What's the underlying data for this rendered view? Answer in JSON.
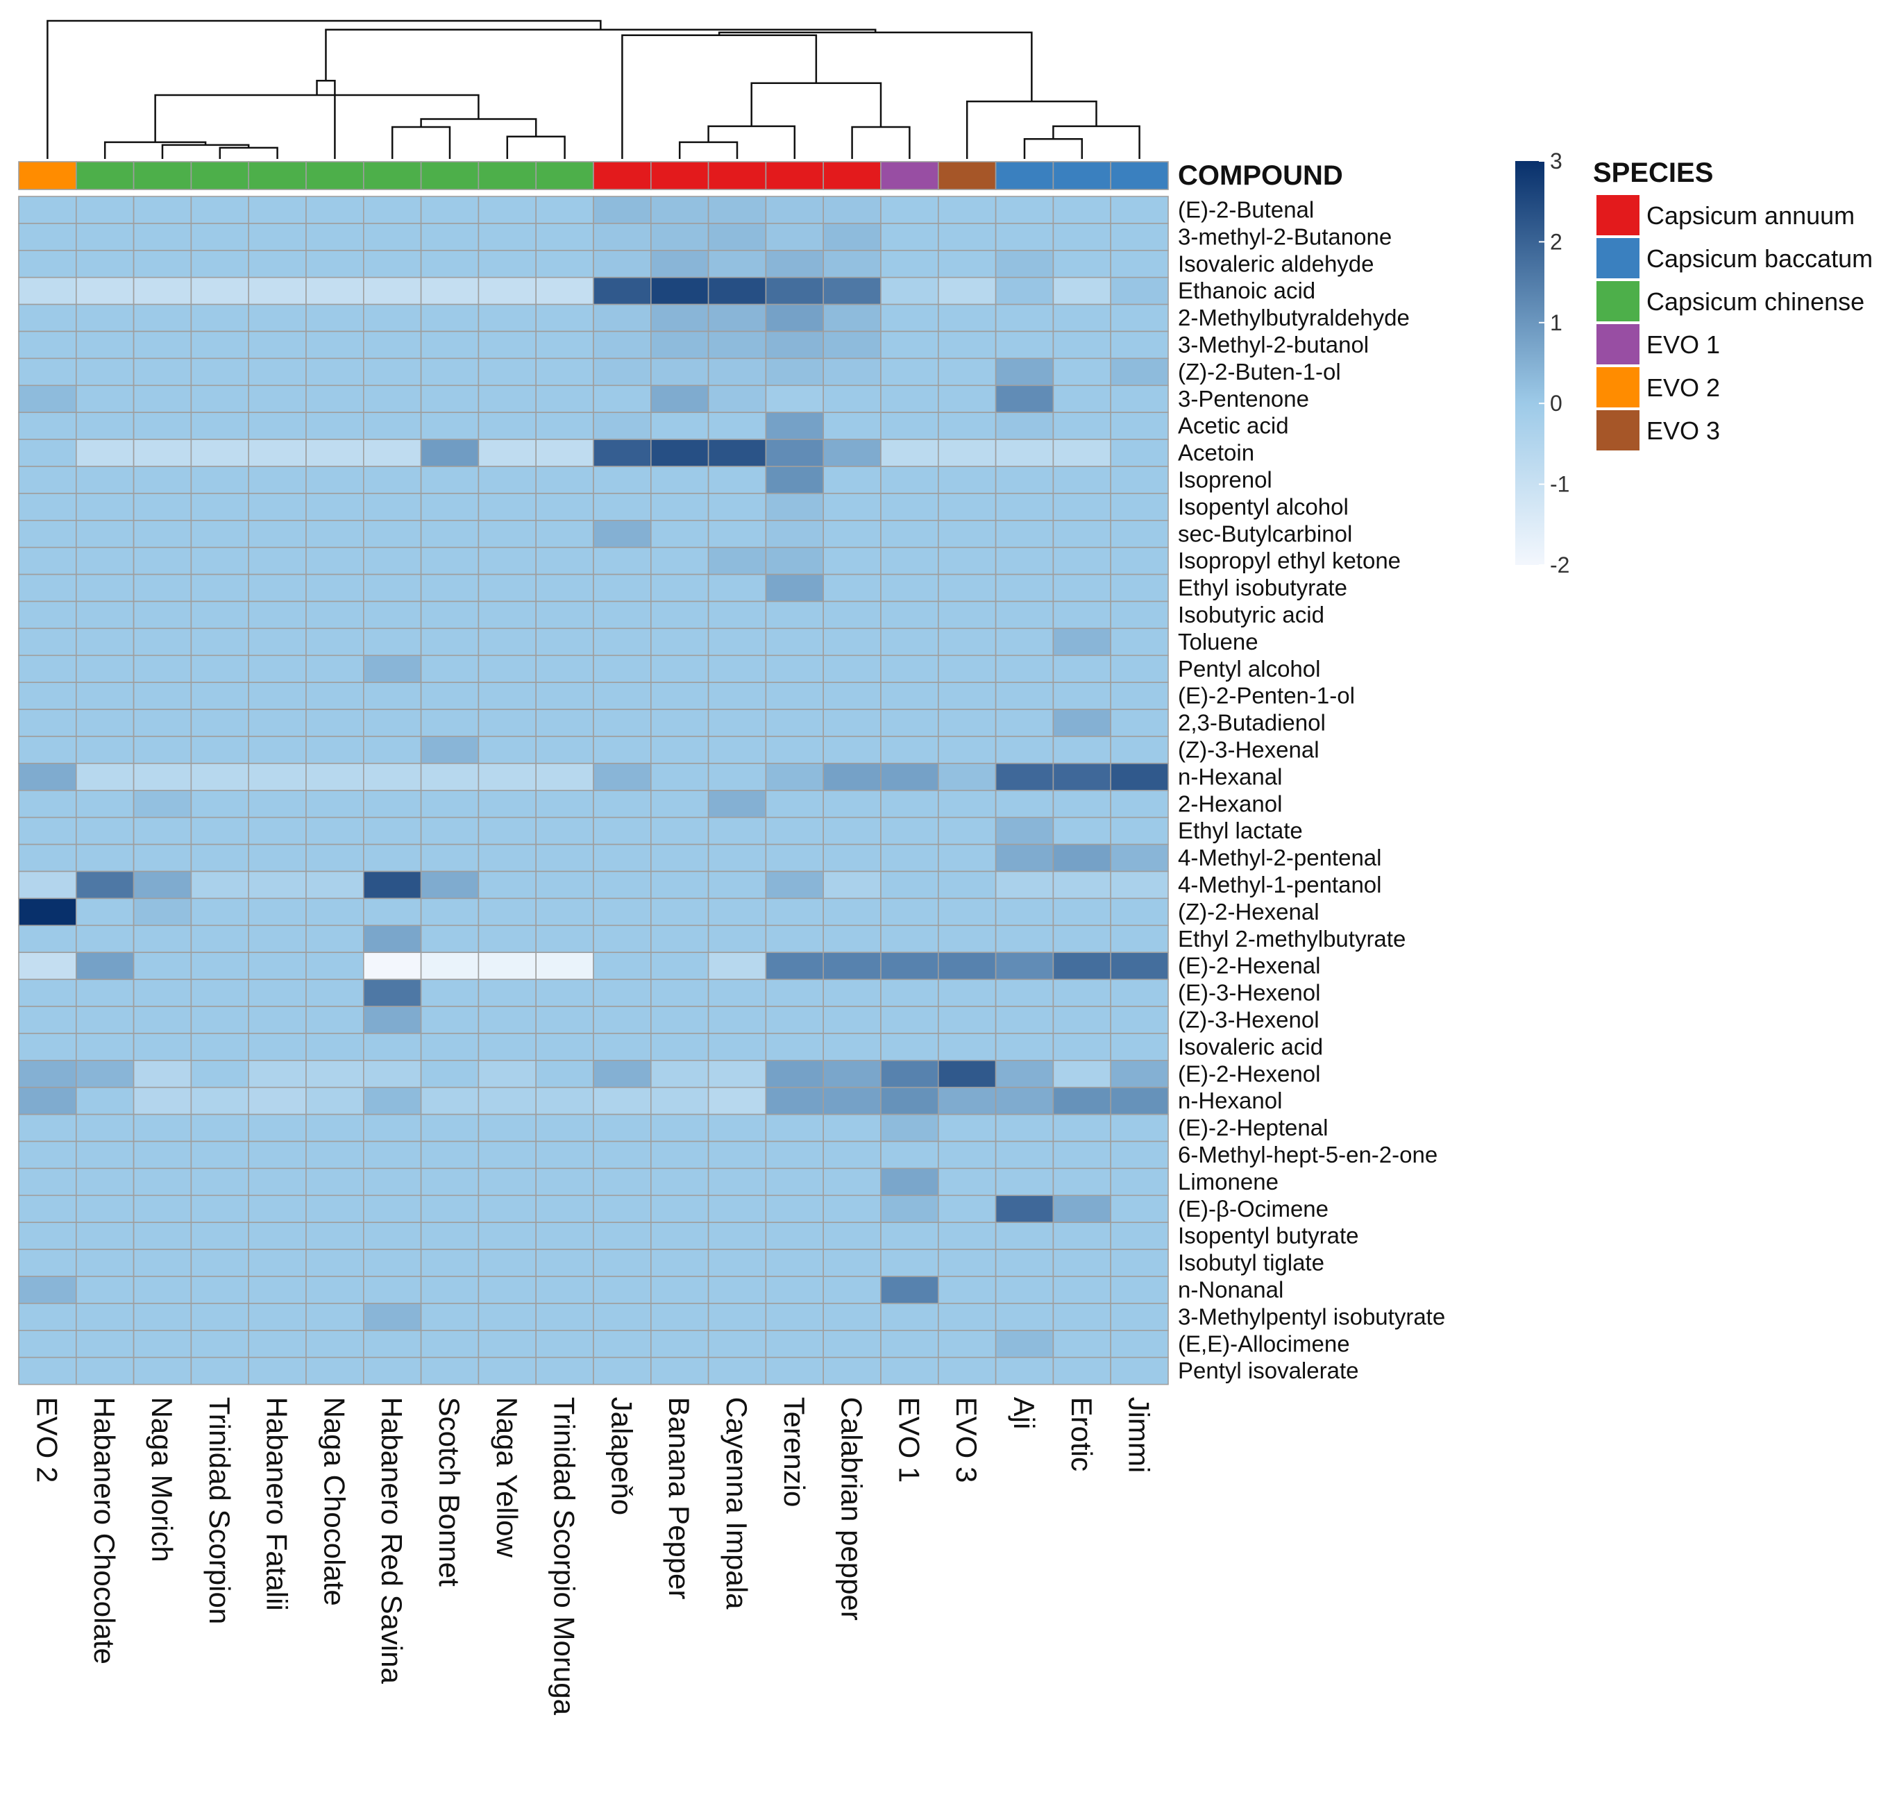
{
  "chart_data": {
    "type": "heatmap",
    "annotation_title": "COMPOUND",
    "columns": [
      "EVO 2",
      "Habanero Chocolate",
      "Naga Morich",
      "Trinidad Scorpion",
      "Habanero Fatalii",
      "Naga Chocolate",
      "Habanero Red Savina",
      "Scotch Bonnet",
      "Naga Yellow",
      "Trinidad Scorpio Moruga",
      "Jalapeňo",
      "Banana Pepper",
      "Cayenna Impala",
      "Terenzio",
      "Calabrian pepper",
      "EVO 1",
      "EVO 3",
      "Aji",
      "Erotic",
      "Jimmi"
    ],
    "column_species": [
      "EVO 2",
      "Capsicum chinense",
      "Capsicum chinense",
      "Capsicum chinense",
      "Capsicum chinense",
      "Capsicum chinense",
      "Capsicum chinense",
      "Capsicum chinense",
      "Capsicum chinense",
      "Capsicum chinense",
      "Capsicum annuum",
      "Capsicum annuum",
      "Capsicum annuum",
      "Capsicum annuum",
      "Capsicum annuum",
      "EVO 1",
      "EVO 3",
      "Capsicum baccatum",
      "Capsicum baccatum",
      "Capsicum baccatum"
    ],
    "rows": [
      "(E)-2-Butenal",
      "3-methyl-2-Butanone",
      "Isovaleric aldehyde",
      "Ethanoic acid",
      "2-Methylbutyraldehyde",
      "3-Methyl-2-butanol",
      "(Z)-2-Buten-1-ol",
      "3-Pentenone",
      "Acetic acid",
      "Acetoin",
      "Isoprenol",
      "Isopentyl alcohol",
      "sec-Butylcarbinol",
      "Isopropyl ethyl ketone",
      "Ethyl isobutyrate",
      "Isobutyric acid",
      "Toluene",
      "Pentyl alcohol",
      "(E)-2-Penten-1-ol",
      "2,3-Butadienol",
      "(Z)-3-Hexenal",
      "n-Hexanal",
      "2-Hexanol",
      "Ethyl lactate",
      "4-Methyl-2-pentenal",
      "4-Methyl-1-pentanol",
      "(Z)-2-Hexenal",
      "Ethyl 2-methylbutyrate",
      "(E)-2-Hexenal",
      "(E)-3-Hexenol",
      "(Z)-3-Hexenol",
      "Isovaleric acid",
      "(E)-2-Hexenol",
      "n-Hexanol",
      "(E)-2-Heptenal",
      "6-Methyl-hept-5-en-2-one",
      "Limonene",
      "(E)-β-Ocimene",
      "Isopentyl butyrate",
      "Isobutyl tiglate",
      "n-Nonanal",
      "3-Methylpentyl isobutyrate",
      "(E,E)-Allocimene",
      "Pentyl isovalerate"
    ],
    "values": [
      [
        0,
        0,
        0,
        0,
        0,
        0,
        0,
        0,
        0,
        0,
        0.3,
        0.2,
        0.2,
        0.1,
        0.1,
        0,
        0,
        0,
        0,
        0
      ],
      [
        0,
        0,
        0,
        0,
        0,
        0,
        0,
        0,
        0,
        0,
        0.1,
        0.2,
        0.3,
        0.1,
        0.3,
        0,
        0,
        0,
        0,
        0
      ],
      [
        0,
        0,
        0,
        0,
        0,
        0,
        0,
        0,
        0,
        0,
        0.1,
        0.4,
        0.2,
        0.4,
        0.2,
        0,
        0,
        0.2,
        0,
        0
      ],
      [
        -0.8,
        -0.9,
        -0.9,
        -0.9,
        -0.9,
        -0.9,
        -0.9,
        -0.9,
        -0.9,
        -0.9,
        2.2,
        2.6,
        2.4,
        1.8,
        1.6,
        -0.3,
        -0.6,
        0.1,
        -0.6,
        0.1
      ],
      [
        0,
        0,
        0,
        0,
        0,
        0,
        0,
        0,
        0,
        0,
        0.1,
        0.4,
        0.4,
        0.8,
        0.3,
        0,
        0,
        0,
        0,
        0
      ],
      [
        0,
        0,
        0,
        0,
        0,
        0,
        0,
        0,
        0,
        0,
        0.1,
        0.3,
        0.3,
        0.4,
        0.3,
        0,
        0,
        0,
        0,
        0
      ],
      [
        0,
        0,
        0,
        0,
        0,
        0,
        0,
        0,
        0,
        0,
        0.1,
        0.1,
        0.1,
        0.2,
        0.1,
        0,
        0,
        0.6,
        0,
        0.3
      ],
      [
        0.3,
        0,
        0,
        0,
        0,
        0,
        0,
        0,
        0,
        0,
        0,
        0.6,
        0.1,
        -0.1,
        0,
        0,
        0,
        1.2,
        0,
        0
      ],
      [
        0,
        0,
        0,
        0,
        0,
        0,
        0,
        0,
        0,
        0,
        0.1,
        0,
        0,
        0.8,
        0,
        0,
        0,
        0.1,
        0,
        0
      ],
      [
        0,
        -0.8,
        -0.8,
        -0.8,
        -0.8,
        -0.8,
        -0.8,
        0.9,
        -0.8,
        -0.8,
        2.1,
        2.4,
        2.3,
        1.2,
        0.6,
        -0.7,
        -0.7,
        -0.7,
        -0.7,
        0
      ],
      [
        0,
        0,
        0,
        0,
        0,
        0,
        0,
        0,
        0,
        0,
        0,
        0,
        0,
        1.1,
        0,
        0,
        0,
        0,
        0,
        0
      ],
      [
        0,
        0,
        0,
        0,
        0,
        0,
        0,
        0,
        0,
        0,
        0,
        0,
        0,
        0.2,
        0,
        0,
        0,
        0,
        0,
        0
      ],
      [
        0,
        0,
        0,
        0,
        0,
        0,
        0,
        0,
        0,
        0,
        0.5,
        0,
        0,
        0.1,
        0,
        0,
        0,
        0,
        0,
        0
      ],
      [
        0,
        0,
        0,
        0,
        0,
        0,
        0,
        0,
        0,
        0,
        0,
        0,
        0.3,
        0.3,
        0,
        0,
        0,
        0,
        0,
        0
      ],
      [
        0,
        0,
        0,
        0,
        0,
        0,
        0,
        0,
        0,
        0,
        0,
        0,
        0,
        0.7,
        0,
        0,
        0,
        0,
        0,
        0
      ],
      [
        0,
        0,
        0,
        0,
        0,
        0,
        0,
        0,
        0,
        0,
        0,
        0,
        0,
        0,
        0,
        0,
        0,
        0,
        0,
        0
      ],
      [
        0,
        0,
        0,
        0,
        0,
        0,
        0,
        0,
        0,
        0,
        0,
        0,
        0,
        0,
        0,
        0,
        0,
        0,
        0.4,
        0
      ],
      [
        0,
        0,
        0,
        0,
        0,
        0,
        0.4,
        0,
        0,
        0,
        0,
        0,
        0,
        0,
        0,
        0,
        0,
        0,
        0,
        0
      ],
      [
        0,
        0,
        0,
        0,
        0,
        0,
        0,
        0,
        0,
        0,
        0,
        0,
        0,
        0,
        0,
        0,
        0,
        0,
        0,
        0
      ],
      [
        0,
        0,
        0,
        0,
        0,
        0,
        0,
        0,
        0,
        0,
        0,
        0,
        0,
        0,
        0,
        0,
        0,
        0,
        0.5,
        0
      ],
      [
        0,
        0,
        0,
        0,
        0,
        0,
        0,
        0.4,
        0,
        0,
        0,
        0,
        0,
        0,
        0,
        0,
        0,
        0,
        0,
        0
      ],
      [
        0.6,
        -0.6,
        -0.6,
        -0.6,
        -0.6,
        -0.6,
        -0.6,
        -0.6,
        -0.6,
        -0.6,
        0.4,
        0,
        0,
        0.3,
        0.8,
        0.8,
        0.2,
        1.9,
        1.9,
        2.2
      ],
      [
        0,
        0,
        0.2,
        0,
        0,
        0,
        0,
        0,
        0,
        0,
        0,
        0,
        0.5,
        0,
        0,
        0,
        0,
        0,
        0,
        0
      ],
      [
        0,
        0,
        0,
        0,
        0,
        0,
        0,
        0,
        0,
        0,
        0,
        0,
        0,
        0,
        0,
        0,
        0,
        0.4,
        0,
        0
      ],
      [
        0,
        0,
        0,
        0,
        0,
        0,
        0,
        0,
        0,
        0,
        0,
        0,
        0,
        0,
        0,
        0,
        0,
        0.6,
        0.8,
        0.4
      ],
      [
        -0.5,
        1.6,
        0.6,
        -0.3,
        -0.3,
        -0.3,
        2.3,
        0.6,
        0,
        0,
        0,
        0,
        0,
        0.4,
        -0.3,
        0,
        0,
        -0.3,
        -0.3,
        -0.3
      ],
      [
        3,
        0,
        0.2,
        0,
        0,
        0,
        0,
        0,
        0,
        0,
        0,
        0,
        0,
        0,
        0,
        0,
        0,
        0,
        0,
        0
      ],
      [
        0,
        0,
        0,
        0,
        0,
        0,
        0.7,
        0,
        0,
        0,
        0,
        0,
        0,
        0,
        0,
        0,
        0,
        0,
        0,
        0
      ],
      [
        -0.9,
        0.8,
        0,
        0,
        0,
        0,
        -2,
        -1.8,
        -1.8,
        -1.8,
        0,
        0,
        -0.6,
        1.4,
        1.4,
        1.4,
        1.4,
        1.2,
        1.8,
        1.8
      ],
      [
        0,
        0,
        0,
        0,
        0,
        0,
        1.6,
        0,
        0,
        0,
        0,
        0,
        0,
        0,
        0,
        0,
        0,
        0,
        0,
        0
      ],
      [
        0,
        0,
        0,
        0,
        0,
        0,
        0.6,
        0,
        0,
        0,
        0,
        0,
        0,
        0,
        0,
        0,
        0,
        0,
        0,
        0
      ],
      [
        0,
        0,
        0,
        0,
        0,
        0,
        0,
        0,
        0,
        0,
        0,
        0,
        0,
        0,
        0,
        0,
        0,
        0,
        0,
        0
      ],
      [
        0.5,
        0.4,
        -0.5,
        0,
        -0.4,
        -0.4,
        -0.3,
        0,
        -0.3,
        0,
        0.5,
        -0.3,
        -0.4,
        0.8,
        0.7,
        1.4,
        2.2,
        0.5,
        -0.3,
        0.5
      ],
      [
        0.6,
        0,
        -0.5,
        -0.4,
        -0.5,
        -0.3,
        0.3,
        -0.3,
        -0.3,
        -0.3,
        -0.4,
        -0.4,
        -0.6,
        0.8,
        0.8,
        1.1,
        0.6,
        0.6,
        1.1,
        1.1
      ],
      [
        0,
        0,
        0,
        0,
        0,
        0,
        0,
        0,
        0,
        0,
        0,
        0,
        0,
        0,
        0,
        0.3,
        0,
        0,
        0,
        0
      ],
      [
        0,
        0,
        0,
        0,
        0,
        0,
        0,
        0,
        0,
        0,
        0,
        0,
        0,
        0,
        0,
        0,
        0,
        0,
        0,
        0
      ],
      [
        0,
        0,
        0,
        0,
        0,
        0,
        0,
        0,
        0,
        0,
        0,
        0,
        0,
        0,
        0,
        0.7,
        0,
        0,
        0,
        0
      ],
      [
        0,
        0,
        0,
        0,
        0,
        0,
        0,
        0,
        0,
        0,
        0,
        0,
        0,
        0,
        0,
        0.3,
        0,
        1.9,
        0.6,
        0
      ],
      [
        0,
        0,
        0,
        0,
        0,
        0,
        0,
        0,
        0,
        0,
        0,
        0,
        0,
        0,
        0,
        0,
        0,
        0,
        0,
        0
      ],
      [
        0,
        0,
        0,
        0,
        0,
        0,
        0,
        0,
        0,
        0,
        0,
        0,
        0,
        0,
        0,
        0,
        0,
        0,
        0,
        0
      ],
      [
        0.4,
        0,
        0,
        0,
        0,
        0,
        0,
        0,
        0,
        0,
        0,
        0,
        0,
        0,
        0,
        1.4,
        0,
        0,
        0,
        0
      ],
      [
        0,
        0,
        0,
        0,
        0,
        0,
        0.4,
        0,
        0,
        0,
        0,
        0,
        0,
        0,
        0,
        0,
        0,
        0,
        0,
        0
      ],
      [
        0,
        0,
        0,
        0,
        0,
        0,
        0,
        0,
        0,
        0,
        0,
        0,
        0,
        0,
        0,
        0,
        0,
        0.3,
        0,
        0
      ],
      [
        0,
        0,
        0,
        0,
        0,
        0,
        0,
        0,
        0,
        0,
        0,
        0,
        0,
        0,
        0,
        0,
        0,
        0,
        0,
        0
      ]
    ],
    "color_scale": {
      "min": -2,
      "max": 3,
      "ticks": [
        3,
        2,
        1,
        0,
        -1,
        -2
      ],
      "low_color": "#f3f7fd",
      "mid_color": "#9dcae8",
      "high_color": "#08306b"
    },
    "legend": {
      "title": "SPECIES",
      "entries": [
        {
          "label": "Capsicum annuum",
          "color": "#e31a1c"
        },
        {
          "label": "Capsicum baccatum",
          "color": "#3a80bf"
        },
        {
          "label": "Capsicum chinense",
          "color": "#4daf4a"
        },
        {
          "label": "EVO 1",
          "color": "#984ea3"
        },
        {
          "label": "EVO 2",
          "color": "#ff8c00"
        },
        {
          "label": "EVO 3",
          "color": "#a65628"
        }
      ]
    },
    "dendrogram": {
      "description": "hierarchical clustering of columns",
      "merges": [
        [
          3,
          4
        ],
        [
          2,
          20
        ],
        [
          1,
          21
        ],
        [
          6,
          7
        ],
        [
          8,
          9
        ],
        [
          23,
          24
        ],
        [
          22,
          25
        ],
        [
          5,
          26
        ],
        [
          11,
          12
        ],
        [
          13,
          28
        ],
        [
          14,
          15
        ],
        [
          29,
          30
        ],
        [
          10,
          31
        ],
        [
          17,
          18
        ],
        [
          19,
          33
        ],
        [
          16,
          34
        ],
        [
          32,
          35
        ],
        [
          27,
          36
        ],
        [
          0,
          37
        ]
      ]
    }
  }
}
